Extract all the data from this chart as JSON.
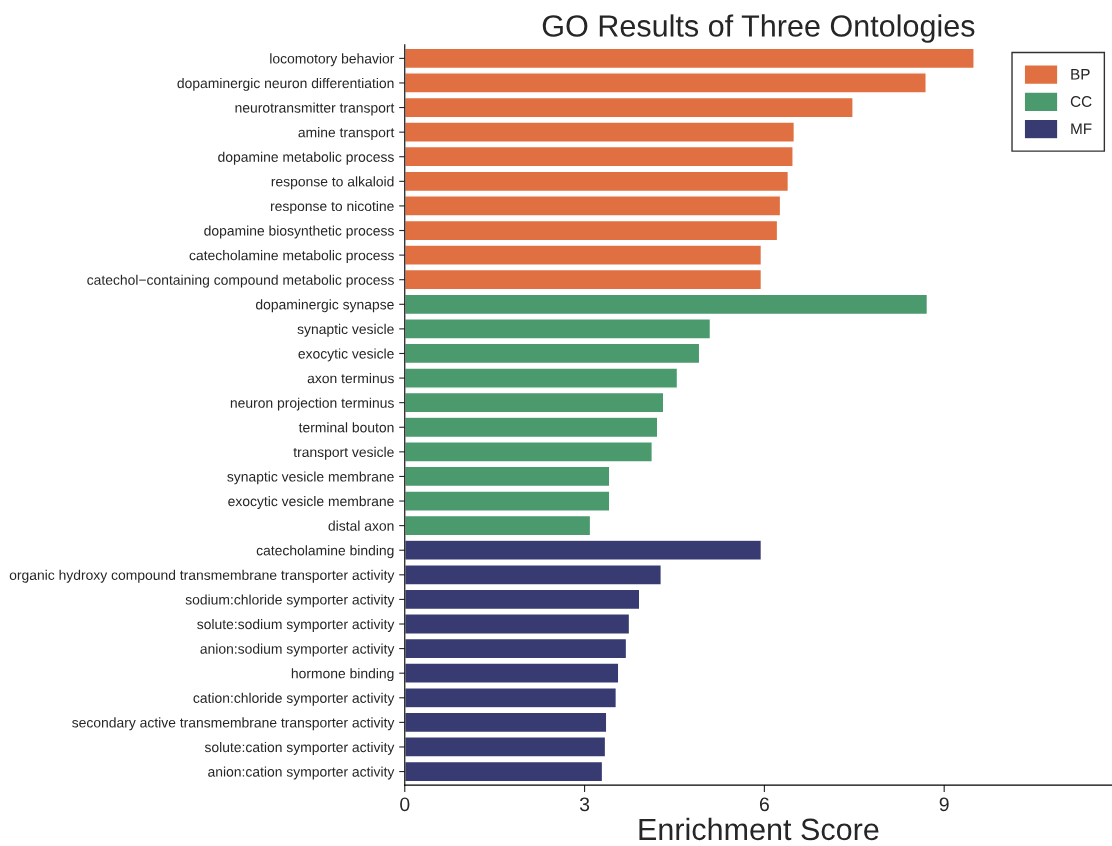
{
  "chart_data": {
    "type": "bar",
    "orientation": "horizontal",
    "title": "GO Results of Three Ontologies",
    "xlabel": "Enrichment Score",
    "categories": [
      "locomotory behavior",
      "dopaminergic neuron differentiation",
      "neurotransmitter transport",
      "amine transport",
      "dopamine metabolic process",
      "response to alkaloid",
      "response to nicotine",
      "dopamine biosynthetic process",
      "catecholamine metabolic process",
      "catechol−containing compound metabolic process",
      "dopaminergic synapse",
      "synaptic vesicle",
      "exocytic vesicle",
      "axon terminus",
      "neuron projection terminus",
      "terminal bouton",
      "transport vesicle",
      "synaptic vesicle membrane",
      "exocytic vesicle membrane",
      "distal axon",
      "catecholamine binding",
      "organic hydroxy compound transmembrane transporter activity",
      "sodium:chloride symporter activity",
      "solute:sodium symporter activity",
      "anion:sodium symporter activity",
      "hormone binding",
      "cation:chloride symporter activity",
      "secondary active transmembrane transporter activity",
      "solute:cation symporter activity",
      "anion:cation symporter activity"
    ],
    "series": [
      {
        "name": "BP",
        "color": "#e07042",
        "values": [
          9.5,
          8.7,
          7.48,
          6.5,
          6.48,
          6.4,
          6.27,
          6.22,
          5.95,
          5.95,
          null,
          null,
          null,
          null,
          null,
          null,
          null,
          null,
          null,
          null,
          null,
          null,
          null,
          null,
          null,
          null,
          null,
          null,
          null,
          null
        ]
      },
      {
        "name": "CC",
        "color": "#4a9a6e",
        "values": [
          null,
          null,
          null,
          null,
          null,
          null,
          null,
          null,
          null,
          null,
          8.72,
          5.1,
          4.92,
          4.55,
          4.32,
          4.22,
          4.13,
          3.42,
          3.42,
          3.1,
          null,
          null,
          null,
          null,
          null,
          null,
          null,
          null,
          null,
          null
        ]
      },
      {
        "name": "MF",
        "color": "#383a72",
        "values": [
          null,
          null,
          null,
          null,
          null,
          null,
          null,
          null,
          null,
          null,
          null,
          null,
          null,
          null,
          null,
          null,
          null,
          null,
          null,
          null,
          5.95,
          4.28,
          3.92,
          3.75,
          3.7,
          3.57,
          3.53,
          3.37,
          3.35,
          3.3
        ]
      }
    ],
    "xlim": [
      0,
      11.8
    ],
    "xticks": [
      0,
      3,
      6,
      9
    ],
    "legend": "top right",
    "grid": false
  }
}
